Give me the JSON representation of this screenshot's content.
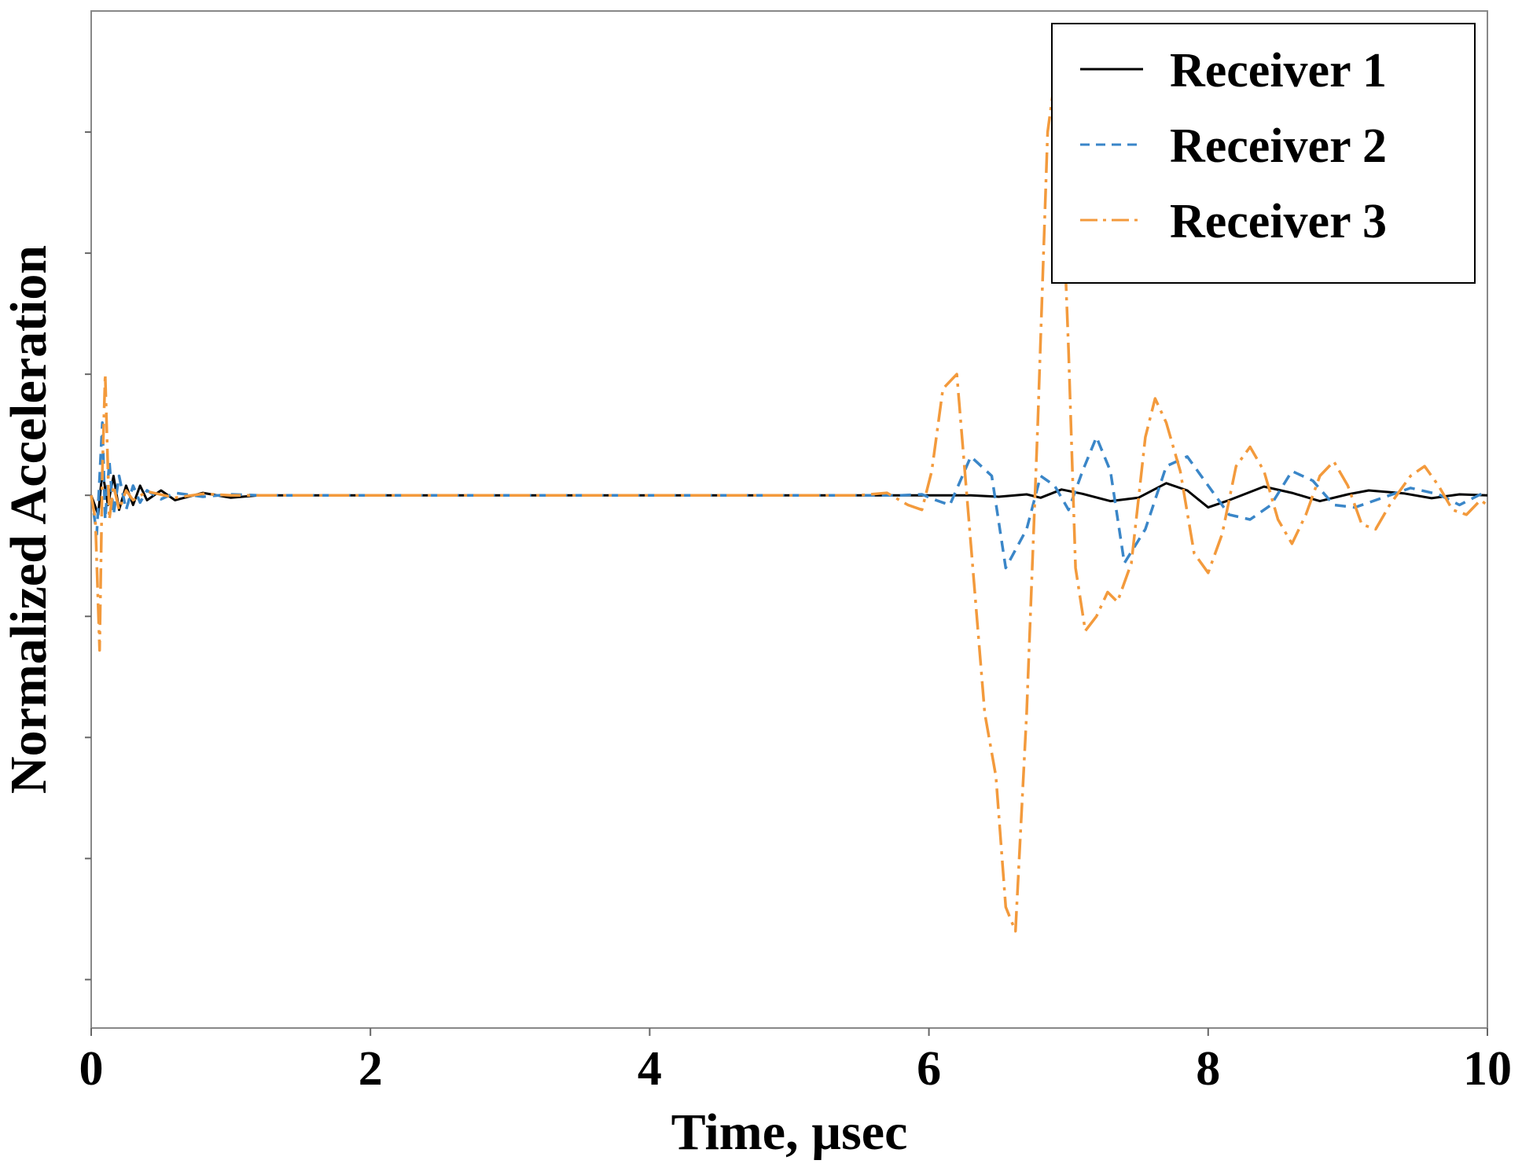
{
  "chart_data": {
    "type": "line",
    "title": "",
    "xlabel": "Time, µsec",
    "ylabel": "Normalized Acceleration",
    "xlim": [
      0,
      10
    ],
    "ylim": [
      -1.1,
      1.0
    ],
    "x_ticks": [
      0,
      2,
      4,
      6,
      8,
      10
    ],
    "x_tick_labels": [
      "0",
      "2",
      "4",
      "6",
      "8",
      "10"
    ],
    "y_tick_values": [
      -1.0,
      -0.75,
      -0.5,
      -0.25,
      0,
      0.25,
      0.5,
      0.75
    ],
    "legend_position": "top-right",
    "series": [
      {
        "name": "Receiver 1",
        "color": "#000000",
        "dash": "solid",
        "points": [
          [
            0,
            0
          ],
          [
            0.05,
            -0.04
          ],
          [
            0.08,
            0.05
          ],
          [
            0.12,
            -0.02
          ],
          [
            0.16,
            0.04
          ],
          [
            0.2,
            -0.03
          ],
          [
            0.25,
            0.02
          ],
          [
            0.3,
            -0.02
          ],
          [
            0.35,
            0.02
          ],
          [
            0.4,
            -0.01
          ],
          [
            0.5,
            0.01
          ],
          [
            0.6,
            -0.01
          ],
          [
            0.8,
            0.005
          ],
          [
            1.0,
            -0.005
          ],
          [
            1.2,
            0
          ],
          [
            5.8,
            0
          ],
          [
            6.0,
            0
          ],
          [
            6.3,
            0
          ],
          [
            6.5,
            -0.003
          ],
          [
            6.7,
            0.002
          ],
          [
            6.8,
            -0.005
          ],
          [
            6.95,
            0.012
          ],
          [
            7.1,
            0.003
          ],
          [
            7.3,
            -0.012
          ],
          [
            7.5,
            -0.005
          ],
          [
            7.7,
            0.025
          ],
          [
            7.85,
            0.01
          ],
          [
            8.0,
            -0.025
          ],
          [
            8.15,
            -0.01
          ],
          [
            8.4,
            0.018
          ],
          [
            8.6,
            0.005
          ],
          [
            8.8,
            -0.012
          ],
          [
            9.0,
            0.002
          ],
          [
            9.15,
            0.01
          ],
          [
            9.4,
            0.004
          ],
          [
            9.6,
            -0.006
          ],
          [
            9.8,
            0.002
          ],
          [
            10,
            0
          ]
        ]
      },
      {
        "name": "Receiver 2",
        "color": "#3a86c8",
        "dash": "dashed",
        "points": [
          [
            0,
            0
          ],
          [
            0.04,
            -0.08
          ],
          [
            0.08,
            0.15
          ],
          [
            0.1,
            -0.05
          ],
          [
            0.13,
            0.07
          ],
          [
            0.16,
            -0.04
          ],
          [
            0.2,
            0.04
          ],
          [
            0.25,
            -0.03
          ],
          [
            0.3,
            0.02
          ],
          [
            0.35,
            -0.015
          ],
          [
            0.4,
            0.01
          ],
          [
            0.5,
            -0.008
          ],
          [
            0.6,
            0.005
          ],
          [
            0.8,
            -0.003
          ],
          [
            1.0,
            0.002
          ],
          [
            1.2,
            0
          ],
          [
            5.8,
            0
          ],
          [
            5.95,
            0.002
          ],
          [
            6.05,
            -0.01
          ],
          [
            6.15,
            -0.02
          ],
          [
            6.3,
            0.08
          ],
          [
            6.45,
            0.04
          ],
          [
            6.55,
            -0.15
          ],
          [
            6.7,
            -0.07
          ],
          [
            6.8,
            0.04
          ],
          [
            6.9,
            0.02
          ],
          [
            7.0,
            -0.03
          ],
          [
            7.1,
            0.05
          ],
          [
            7.2,
            0.12
          ],
          [
            7.3,
            0.05
          ],
          [
            7.4,
            -0.14
          ],
          [
            7.55,
            -0.07
          ],
          [
            7.7,
            0.06
          ],
          [
            7.85,
            0.08
          ],
          [
            8.0,
            0.02
          ],
          [
            8.15,
            -0.04
          ],
          [
            8.3,
            -0.05
          ],
          [
            8.45,
            -0.02
          ],
          [
            8.6,
            0.05
          ],
          [
            8.75,
            0.03
          ],
          [
            8.9,
            -0.02
          ],
          [
            9.05,
            -0.025
          ],
          [
            9.25,
            -0.005
          ],
          [
            9.45,
            0.015
          ],
          [
            9.65,
            0.002
          ],
          [
            9.8,
            -0.02
          ],
          [
            9.95,
            0.002
          ],
          [
            10,
            0.01
          ]
        ]
      },
      {
        "name": "Receiver 3",
        "color": "#f39a3c",
        "dash": "dashdot",
        "points": [
          [
            0,
            0
          ],
          [
            0.03,
            -0.05
          ],
          [
            0.06,
            -0.32
          ],
          [
            0.08,
            0.05
          ],
          [
            0.1,
            0.25
          ],
          [
            0.13,
            -0.05
          ],
          [
            0.16,
            0.02
          ],
          [
            0.2,
            -0.03
          ],
          [
            0.25,
            0.01
          ],
          [
            0.3,
            -0.01
          ],
          [
            0.4,
            0.008
          ],
          [
            0.6,
            -0.005
          ],
          [
            0.8,
            0.003
          ],
          [
            1.0,
            0
          ],
          [
            5.5,
            0
          ],
          [
            5.7,
            0.005
          ],
          [
            5.85,
            -0.02
          ],
          [
            5.95,
            -0.03
          ],
          [
            6.02,
            0.05
          ],
          [
            6.1,
            0.22
          ],
          [
            6.2,
            0.25
          ],
          [
            6.3,
            -0.1
          ],
          [
            6.4,
            -0.45
          ],
          [
            6.48,
            -0.58
          ],
          [
            6.55,
            -0.85
          ],
          [
            6.62,
            -0.9
          ],
          [
            6.7,
            -0.45
          ],
          [
            6.78,
            0.15
          ],
          [
            6.85,
            0.75
          ],
          [
            6.92,
            0.9
          ],
          [
            7.0,
            0.3
          ],
          [
            7.05,
            -0.15
          ],
          [
            7.12,
            -0.28
          ],
          [
            7.2,
            -0.25
          ],
          [
            7.28,
            -0.2
          ],
          [
            7.35,
            -0.22
          ],
          [
            7.45,
            -0.14
          ],
          [
            7.55,
            0.12
          ],
          [
            7.62,
            0.2
          ],
          [
            7.7,
            0.15
          ],
          [
            7.8,
            0.05
          ],
          [
            7.9,
            -0.12
          ],
          [
            8.0,
            -0.16
          ],
          [
            8.1,
            -0.08
          ],
          [
            8.2,
            0.06
          ],
          [
            8.3,
            0.1
          ],
          [
            8.4,
            0.05
          ],
          [
            8.5,
            -0.05
          ],
          [
            8.6,
            -0.1
          ],
          [
            8.7,
            -0.04
          ],
          [
            8.8,
            0.04
          ],
          [
            8.9,
            0.07
          ],
          [
            9.0,
            0.02
          ],
          [
            9.1,
            -0.06
          ],
          [
            9.2,
            -0.07
          ],
          [
            9.3,
            -0.02
          ],
          [
            9.45,
            0.04
          ],
          [
            9.55,
            0.06
          ],
          [
            9.65,
            0.02
          ],
          [
            9.75,
            -0.03
          ],
          [
            9.85,
            -0.04
          ],
          [
            9.95,
            -0.01
          ],
          [
            10,
            -0.02
          ]
        ]
      }
    ]
  }
}
